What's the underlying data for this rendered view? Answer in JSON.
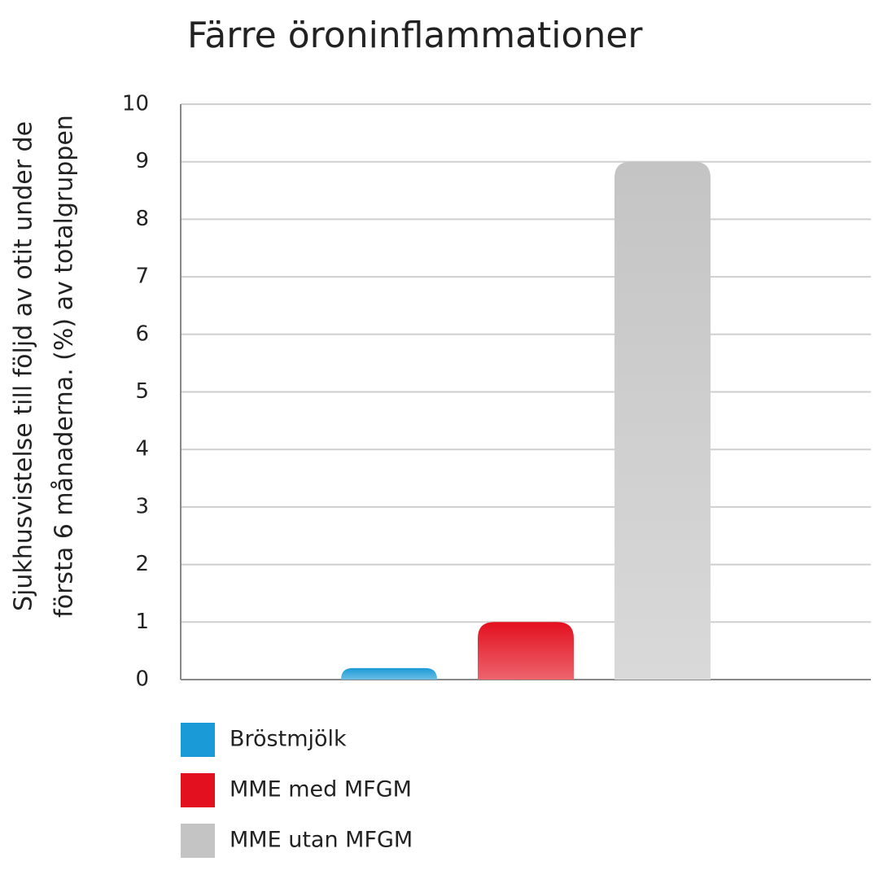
{
  "chart_data": {
    "type": "bar",
    "title": "Färre öroninflammationer",
    "ylabel": [
      "Sjukhusvistelse till följd av otit under de",
      "första 6 månaderna. (%) av totalgruppen"
    ],
    "categories": [
      null
    ],
    "series": [
      {
        "name": "Bröstmjölk",
        "color": "#1a9ad6",
        "values": [
          0.2
        ]
      },
      {
        "name": "MME med MFGM",
        "color": "#e3101f",
        "values": [
          1.0
        ]
      },
      {
        "name": "MME utan MFGM",
        "color": "#c4c4c4",
        "values": [
          9.0
        ]
      }
    ],
    "ylim": [
      0,
      10
    ],
    "yticks": [
      0,
      1,
      2,
      3,
      4,
      5,
      6,
      7,
      8,
      9,
      10
    ],
    "grid": true
  }
}
